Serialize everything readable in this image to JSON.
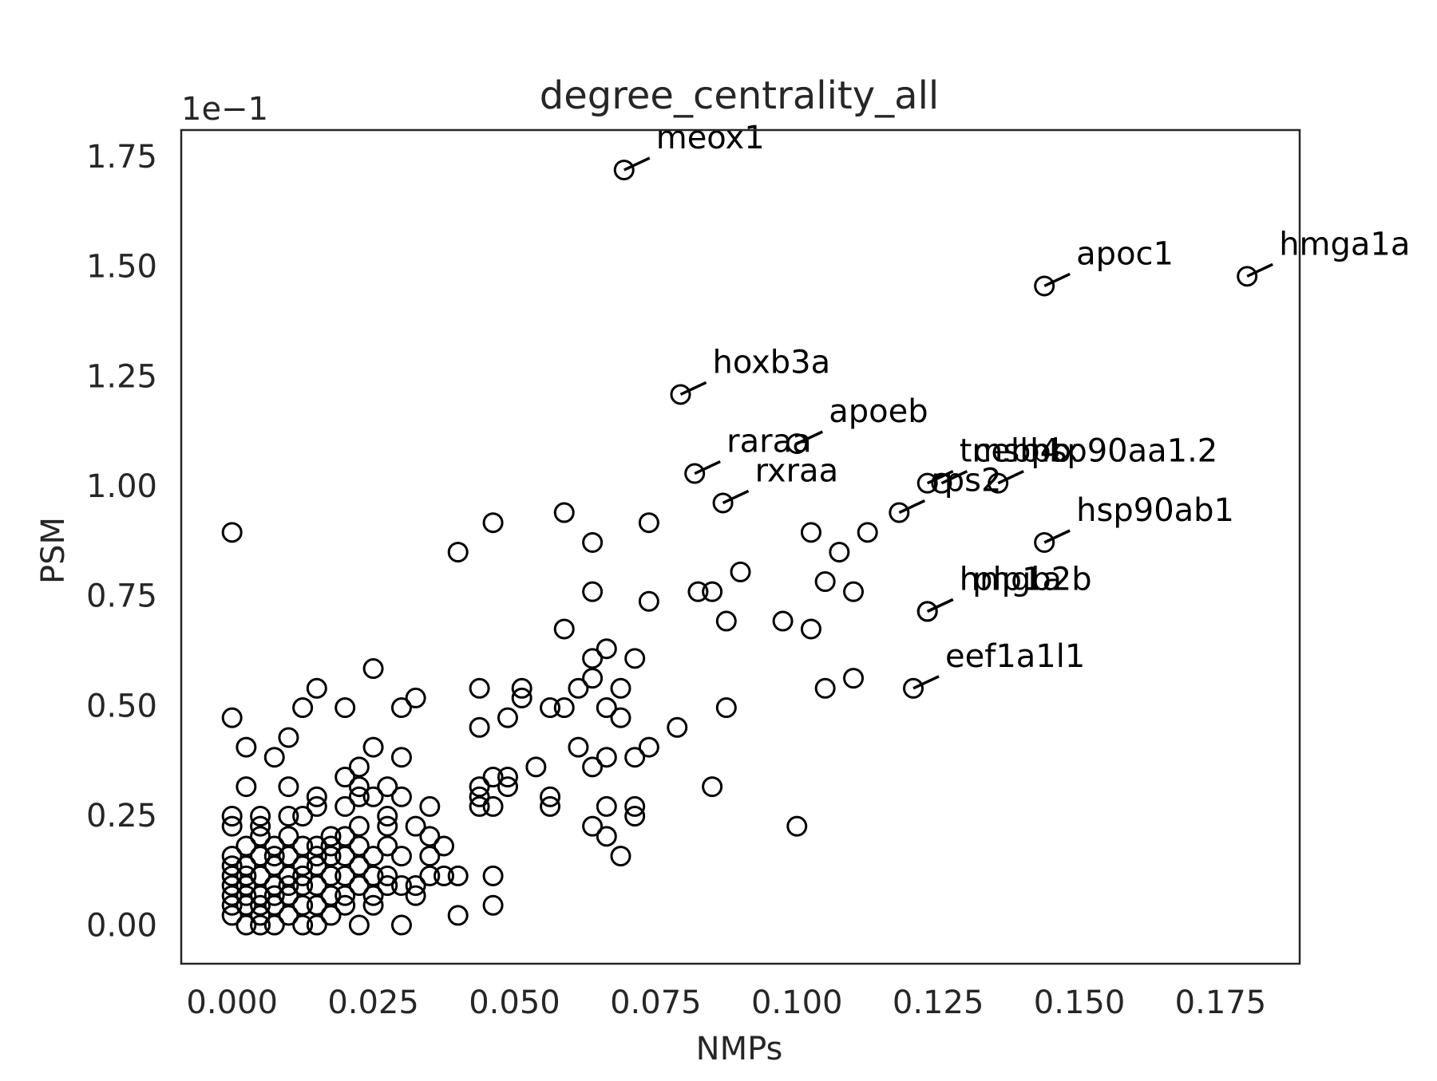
{
  "chart_data": {
    "type": "scatter",
    "title": "degree_centrality_all",
    "xlabel": "NMPs",
    "ylabel": "PSM",
    "y_offset_text": "1e−1",
    "xlim": [
      -0.009,
      0.189
    ],
    "ylim": [
      -0.0088,
      0.181
    ],
    "xticks": [
      0.0,
      0.025,
      0.05,
      0.075,
      0.1,
      0.125,
      0.15,
      0.175
    ],
    "xtick_labels": [
      "0.000",
      "0.025",
      "0.050",
      "0.075",
      "0.100",
      "0.125",
      "0.150",
      "0.175"
    ],
    "yticks": [
      0.0,
      0.025,
      0.05,
      0.075,
      0.1,
      0.125,
      0.15,
      0.175
    ],
    "ytick_labels": [
      "0.00",
      "0.25",
      "0.50",
      "0.75",
      "1.00",
      "1.25",
      "1.50",
      "1.75"
    ],
    "grid": false,
    "marker": "open-circle",
    "points": [
      [
        0.0,
        0.0894
      ],
      [
        0.0,
        0.0472
      ],
      [
        0.0,
        0.0248
      ],
      [
        0.0,
        0.0225
      ],
      [
        0.0,
        0.0157
      ],
      [
        0.0,
        0.0135
      ],
      [
        0.0,
        0.0112
      ],
      [
        0.0,
        0.009
      ],
      [
        0.0,
        0.0067
      ],
      [
        0.0,
        0.0045
      ],
      [
        0.0,
        0.0022
      ],
      [
        0.0025,
        0.0405
      ],
      [
        0.0025,
        0.0315
      ],
      [
        0.0025,
        0.018
      ],
      [
        0.0025,
        0.0135
      ],
      [
        0.0025,
        0.009
      ],
      [
        0.0025,
        0.0045
      ],
      [
        0.0025,
        0.0
      ],
      [
        0.0025,
        0.0067
      ],
      [
        0.0025,
        0.0112
      ],
      [
        0.005,
        0.0248
      ],
      [
        0.005,
        0.0225
      ],
      [
        0.005,
        0.0202
      ],
      [
        0.005,
        0.0157
      ],
      [
        0.005,
        0.0112
      ],
      [
        0.005,
        0.0067
      ],
      [
        0.005,
        0.0045
      ],
      [
        0.005,
        0.0022
      ],
      [
        0.005,
        0.0
      ],
      [
        0.0075,
        0.0382
      ],
      [
        0.0075,
        0.018
      ],
      [
        0.0075,
        0.0135
      ],
      [
        0.0075,
        0.009
      ],
      [
        0.0075,
        0.0045
      ],
      [
        0.0075,
        0.0
      ],
      [
        0.0075,
        0.0157
      ],
      [
        0.0075,
        0.0067
      ],
      [
        0.01,
        0.0427
      ],
      [
        0.01,
        0.0315
      ],
      [
        0.01,
        0.0248
      ],
      [
        0.01,
        0.0202
      ],
      [
        0.01,
        0.0157
      ],
      [
        0.01,
        0.0112
      ],
      [
        0.01,
        0.0067
      ],
      [
        0.01,
        0.0022
      ],
      [
        0.01,
        0.009
      ],
      [
        0.0125,
        0.0495
      ],
      [
        0.0125,
        0.0248
      ],
      [
        0.0125,
        0.018
      ],
      [
        0.0125,
        0.0135
      ],
      [
        0.0125,
        0.009
      ],
      [
        0.0125,
        0.0045
      ],
      [
        0.0125,
        0.0
      ],
      [
        0.0125,
        0.0112
      ],
      [
        0.015,
        0.0539
      ],
      [
        0.015,
        0.0292
      ],
      [
        0.015,
        0.027
      ],
      [
        0.015,
        0.018
      ],
      [
        0.015,
        0.0135
      ],
      [
        0.015,
        0.009
      ],
      [
        0.015,
        0.0045
      ],
      [
        0.015,
        0.0
      ],
      [
        0.015,
        0.0157
      ],
      [
        0.0175,
        0.0202
      ],
      [
        0.0175,
        0.0157
      ],
      [
        0.0175,
        0.0112
      ],
      [
        0.0175,
        0.0067
      ],
      [
        0.0175,
        0.0022
      ],
      [
        0.0175,
        0.018
      ],
      [
        0.02,
        0.0495
      ],
      [
        0.02,
        0.0337
      ],
      [
        0.02,
        0.027
      ],
      [
        0.02,
        0.0202
      ],
      [
        0.02,
        0.0157
      ],
      [
        0.02,
        0.0112
      ],
      [
        0.02,
        0.0067
      ],
      [
        0.02,
        0.0045
      ],
      [
        0.0225,
        0.036
      ],
      [
        0.0225,
        0.0315
      ],
      [
        0.0225,
        0.0292
      ],
      [
        0.0225,
        0.0225
      ],
      [
        0.0225,
        0.018
      ],
      [
        0.0225,
        0.0135
      ],
      [
        0.0225,
        0.009
      ],
      [
        0.0225,
        0.0
      ],
      [
        0.025,
        0.0584
      ],
      [
        0.025,
        0.0405
      ],
      [
        0.025,
        0.0292
      ],
      [
        0.025,
        0.0157
      ],
      [
        0.025,
        0.0112
      ],
      [
        0.025,
        0.0067
      ],
      [
        0.025,
        0.0045
      ],
      [
        0.0275,
        0.0315
      ],
      [
        0.0275,
        0.0248
      ],
      [
        0.0275,
        0.0225
      ],
      [
        0.0275,
        0.018
      ],
      [
        0.0275,
        0.0112
      ],
      [
        0.0275,
        0.009
      ],
      [
        0.03,
        0.0495
      ],
      [
        0.03,
        0.0382
      ],
      [
        0.03,
        0.0292
      ],
      [
        0.03,
        0.0157
      ],
      [
        0.03,
        0.009
      ],
      [
        0.03,
        0.0
      ],
      [
        0.0325,
        0.0517
      ],
      [
        0.0325,
        0.0225
      ],
      [
        0.0325,
        0.0067
      ],
      [
        0.0325,
        0.009
      ],
      [
        0.035,
        0.027
      ],
      [
        0.035,
        0.0202
      ],
      [
        0.035,
        0.0157
      ],
      [
        0.035,
        0.0112
      ],
      [
        0.0375,
        0.018
      ],
      [
        0.0375,
        0.0112
      ],
      [
        0.04,
        0.0849
      ],
      [
        0.04,
        0.0112
      ],
      [
        0.04,
        0.0022
      ],
      [
        0.0438,
        0.0539
      ],
      [
        0.0438,
        0.045
      ],
      [
        0.0438,
        0.0315
      ],
      [
        0.0438,
        0.0292
      ],
      [
        0.0438,
        0.027
      ],
      [
        0.0462,
        0.0916
      ],
      [
        0.0462,
        0.0337
      ],
      [
        0.0462,
        0.027
      ],
      [
        0.0462,
        0.0112
      ],
      [
        0.0462,
        0.0045
      ],
      [
        0.0488,
        0.0472
      ],
      [
        0.0488,
        0.0337
      ],
      [
        0.0488,
        0.0315
      ],
      [
        0.0513,
        0.0539
      ],
      [
        0.0513,
        0.0517
      ],
      [
        0.0538,
        0.036
      ],
      [
        0.0563,
        0.0495
      ],
      [
        0.0563,
        0.0292
      ],
      [
        0.0563,
        0.027
      ],
      [
        0.0588,
        0.0939
      ],
      [
        0.0588,
        0.0674
      ],
      [
        0.0588,
        0.0495
      ],
      [
        0.0613,
        0.0539
      ],
      [
        0.0613,
        0.0405
      ],
      [
        0.0638,
        0.0871
      ],
      [
        0.0638,
        0.0759
      ],
      [
        0.0638,
        0.0607
      ],
      [
        0.0638,
        0.0562
      ],
      [
        0.0638,
        0.036
      ],
      [
        0.0638,
        0.0225
      ],
      [
        0.0663,
        0.0629
      ],
      [
        0.0663,
        0.0495
      ],
      [
        0.0663,
        0.0382
      ],
      [
        0.0663,
        0.027
      ],
      [
        0.0663,
        0.0202
      ],
      [
        0.0688,
        0.0539
      ],
      [
        0.0688,
        0.0472
      ],
      [
        0.0688,
        0.0157
      ],
      [
        0.0713,
        0.0607
      ],
      [
        0.0713,
        0.0382
      ],
      [
        0.0713,
        0.027
      ],
      [
        0.0713,
        0.0248
      ],
      [
        0.0738,
        0.0916
      ],
      [
        0.0738,
        0.0737
      ],
      [
        0.0738,
        0.0405
      ],
      [
        0.0788,
        0.045
      ],
      [
        0.0825,
        0.0759
      ],
      [
        0.085,
        0.0759
      ],
      [
        0.085,
        0.0315
      ],
      [
        0.0875,
        0.0692
      ],
      [
        0.0875,
        0.0495
      ],
      [
        0.09,
        0.0804
      ],
      [
        0.0975,
        0.0692
      ],
      [
        0.1,
        0.0225
      ],
      [
        0.1025,
        0.0894
      ],
      [
        0.1025,
        0.0674
      ],
      [
        0.105,
        0.0782
      ],
      [
        0.105,
        0.0539
      ],
      [
        0.1075,
        0.0849
      ],
      [
        0.11,
        0.0759
      ],
      [
        0.11,
        0.0562
      ],
      [
        0.1125,
        0.0894
      ]
    ],
    "annotated_points": [
      {
        "x": 0.0694,
        "y": 0.1719,
        "label": "meox1"
      },
      {
        "x": 0.1438,
        "y": 0.1455,
        "label": "apoc1"
      },
      {
        "x": 0.1797,
        "y": 0.1477,
        "label": "hmga1a"
      },
      {
        "x": 0.0794,
        "y": 0.1208,
        "label": "hoxb3a"
      },
      {
        "x": 0.1,
        "y": 0.1096,
        "label": "apoeb"
      },
      {
        "x": 0.0819,
        "y": 0.1028,
        "label": "raraa"
      },
      {
        "x": 0.0869,
        "y": 0.0961,
        "label": "rxraa"
      },
      {
        "x": 0.1231,
        "y": 0.1006,
        "label": "tmsb4x"
      },
      {
        "x": 0.1256,
        "y": 0.1006,
        "label": "cebpb"
      },
      {
        "x": 0.1181,
        "y": 0.0939,
        "label": "rps2"
      },
      {
        "x": 0.1356,
        "y": 0.1006,
        "label": "hsp90aa1.2"
      },
      {
        "x": 0.1438,
        "y": 0.0871,
        "label": "hsp90ab1"
      },
      {
        "x": 0.1231,
        "y": 0.0714,
        "label": "hmgb2b"
      },
      {
        "x": 0.1231,
        "y": 0.0714,
        "label": "rplp1a"
      },
      {
        "x": 0.1206,
        "y": 0.0539,
        "label": "eef1a1l1"
      }
    ],
    "annotation_texts_visible": [
      "tmsb4x",
      "cebpb",
      "hsp90ab"
    ]
  }
}
